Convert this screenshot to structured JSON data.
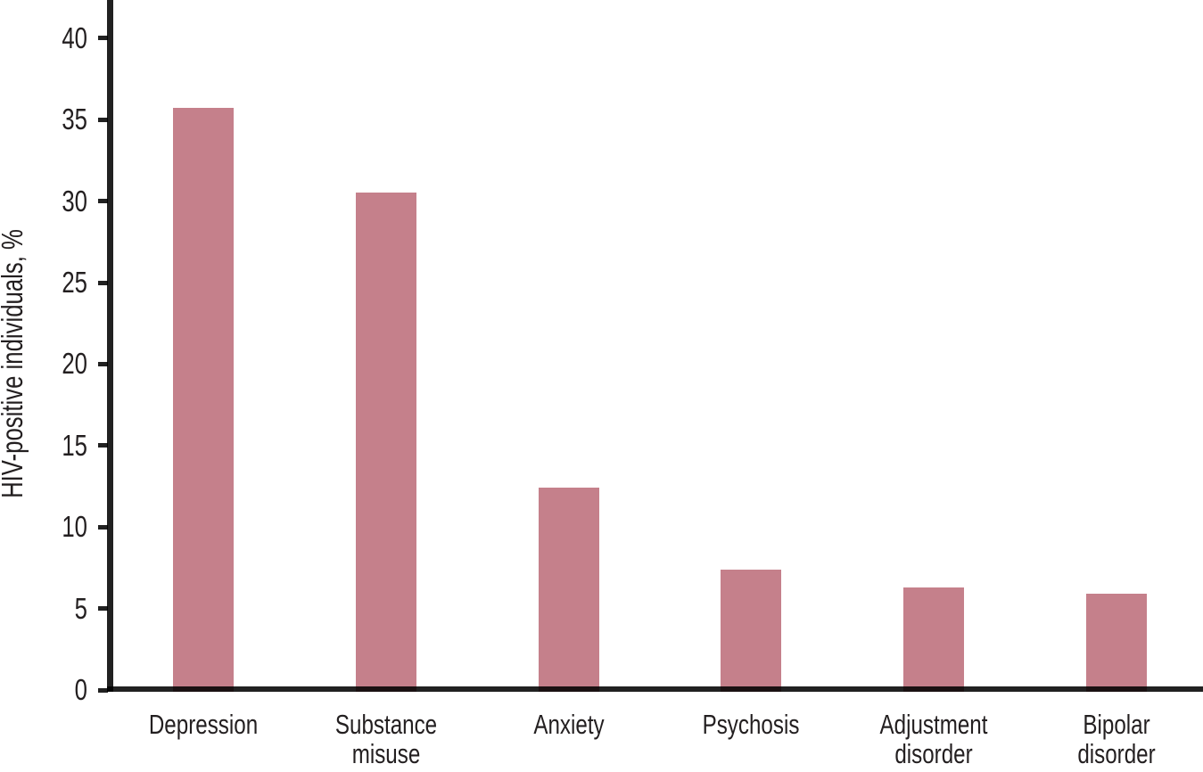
{
  "chart_data": {
    "type": "bar",
    "title": "",
    "ylabel": "HIV-positive individuals, %",
    "xlabel": "",
    "categories": [
      "Depression",
      "Substance misuse",
      "Anxiety",
      "Psychosis",
      "Adjustment disorder",
      "Bipolar disorder"
    ],
    "category_lines": [
      [
        "Depression"
      ],
      [
        "Substance",
        "misuse"
      ],
      [
        "Anxiety"
      ],
      [
        "Psychosis"
      ],
      [
        "Adjustment",
        "disorder"
      ],
      [
        "Bipolar",
        "disorder"
      ]
    ],
    "values": [
      35.7,
      30.5,
      12.4,
      7.4,
      6.3,
      5.9
    ],
    "yticks": [
      0,
      5,
      10,
      15,
      20,
      25,
      30,
      35,
      40
    ],
    "ylim": [
      0,
      42.3
    ],
    "grid": false,
    "legend": false,
    "bar_color": "#c5808b",
    "axis_color": "#231f20",
    "background_color": "#ffffff"
  }
}
